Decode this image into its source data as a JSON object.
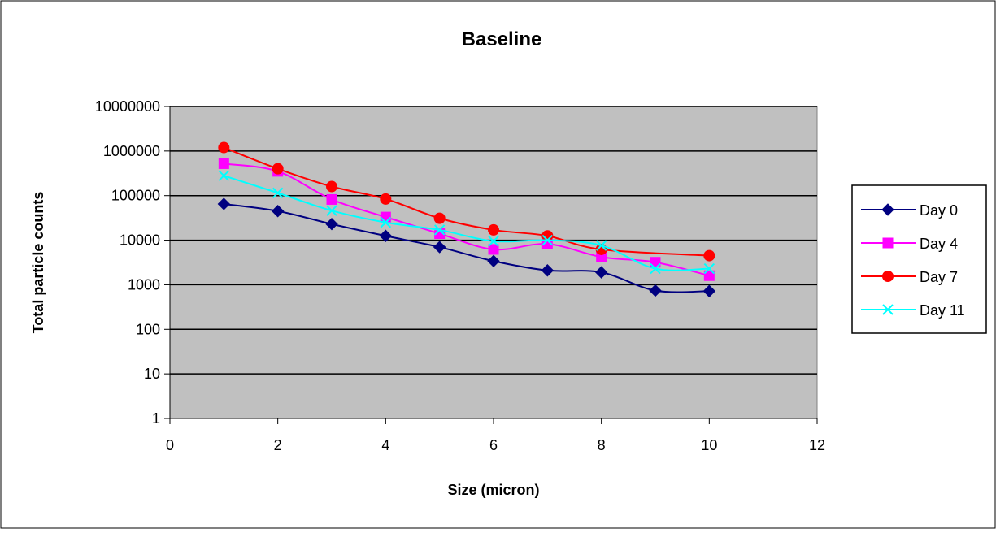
{
  "chart_data": {
    "type": "line",
    "title": "Baseline",
    "xlabel": "Size (micron)",
    "ylabel": "Total particle counts",
    "xlim": [
      0,
      12
    ],
    "x_ticks": [
      "0",
      "2",
      "4",
      "6",
      "8",
      "10",
      "12"
    ],
    "y_scale": "log",
    "ylim": [
      1,
      10000000
    ],
    "y_ticks": [
      "1",
      "10",
      "100",
      "1000",
      "10000",
      "100000",
      "1000000",
      "10000000"
    ],
    "grid": "horizontal",
    "plot_background": "#c0c0c0",
    "legend_position": "right",
    "series": [
      {
        "name": "Day 0",
        "color": "#000080",
        "marker": "diamond",
        "x": [
          1,
          2,
          3,
          4,
          5,
          6,
          7,
          8,
          9,
          10
        ],
        "y": [
          65000,
          45000,
          23000,
          12500,
          7000,
          3400,
          2100,
          1900,
          740,
          720
        ]
      },
      {
        "name": "Day 4",
        "color": "#ff00ff",
        "marker": "square",
        "x": [
          1,
          2,
          3,
          4,
          5,
          6,
          7,
          8,
          9,
          10
        ],
        "y": [
          520000,
          350000,
          82000,
          33000,
          14000,
          6200,
          8200,
          4200,
          3200,
          1600
        ]
      },
      {
        "name": "Day 7",
        "color": "#ff0000",
        "marker": "circle",
        "x": [
          1,
          2,
          3,
          4,
          5,
          6,
          7,
          8,
          9,
          10
        ],
        "y": [
          1200000,
          400000,
          160000,
          84000,
          31000,
          17000,
          12500,
          6200,
          null,
          4500
        ]
      },
      {
        "name": "Day 11",
        "color": "#00ffff",
        "marker": "x",
        "x": [
          1,
          2,
          3,
          4,
          5,
          6,
          7,
          8,
          9,
          10
        ],
        "y": [
          280000,
          115000,
          46000,
          25000,
          17000,
          9500,
          10000,
          7600,
          2300,
          2300
        ]
      }
    ]
  }
}
